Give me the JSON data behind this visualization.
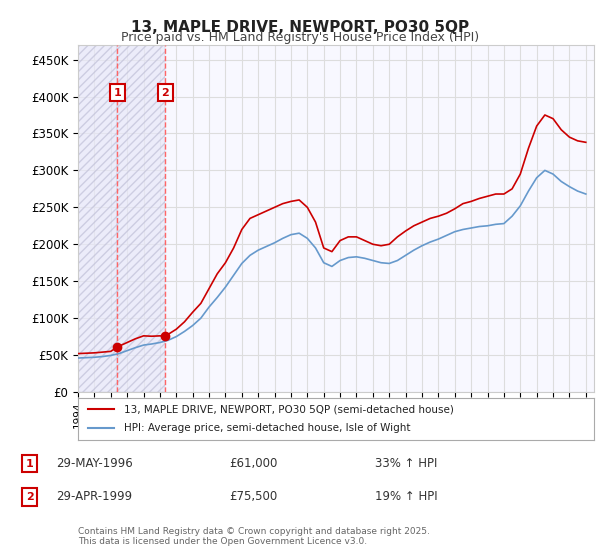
{
  "title": "13, MAPLE DRIVE, NEWPORT, PO30 5QP",
  "subtitle": "Price paid vs. HM Land Registry's House Price Index (HPI)",
  "xlabel": "",
  "ylabel": "",
  "ylim": [
    0,
    470000
  ],
  "yticks": [
    0,
    50000,
    100000,
    150000,
    200000,
    250000,
    300000,
    350000,
    400000,
    450000
  ],
  "ytick_labels": [
    "£0",
    "£50K",
    "£100K",
    "£150K",
    "£200K",
    "£250K",
    "£300K",
    "£350K",
    "£400K",
    "£450K"
  ],
  "xlim_start": 1994.0,
  "xlim_end": 2025.5,
  "sale1_date": 1996.41,
  "sale1_price": 61000,
  "sale1_label": "1",
  "sale1_date_str": "29-MAY-1996",
  "sale1_price_str": "£61,000",
  "sale1_hpi_str": "33% ↑ HPI",
  "sale2_date": 1999.33,
  "sale2_price": 75500,
  "sale2_label": "2",
  "sale2_date_str": "29-APR-1999",
  "sale2_price_str": "£75,500",
  "sale2_hpi_str": "19% ↑ HPI",
  "red_line_color": "#cc0000",
  "blue_line_color": "#6699cc",
  "sale_marker_color": "#cc0000",
  "vline_color": "#ff6666",
  "hatch_color": "#ddddff",
  "legend_label_red": "13, MAPLE DRIVE, NEWPORT, PO30 5QP (semi-detached house)",
  "legend_label_blue": "HPI: Average price, semi-detached house, Isle of Wight",
  "footer": "Contains HM Land Registry data © Crown copyright and database right 2025.\nThis data is licensed under the Open Government Licence v3.0.",
  "background_color": "#ffffff",
  "plot_bg_color": "#f8f8ff",
  "grid_color": "#dddddd",
  "red_data_x": [
    1994.0,
    1994.5,
    1995.0,
    1995.5,
    1996.0,
    1996.41,
    1996.5,
    1997.0,
    1997.5,
    1998.0,
    1998.5,
    1999.0,
    1999.33,
    1999.5,
    2000.0,
    2000.5,
    2001.0,
    2001.5,
    2002.0,
    2002.5,
    2003.0,
    2003.5,
    2004.0,
    2004.5,
    2005.0,
    2005.5,
    2006.0,
    2006.5,
    2007.0,
    2007.5,
    2008.0,
    2008.5,
    2009.0,
    2009.5,
    2010.0,
    2010.5,
    2011.0,
    2011.5,
    2012.0,
    2012.5,
    2013.0,
    2013.5,
    2014.0,
    2014.5,
    2015.0,
    2015.5,
    2016.0,
    2016.5,
    2017.0,
    2017.5,
    2018.0,
    2018.5,
    2019.0,
    2019.5,
    2020.0,
    2020.5,
    2021.0,
    2021.5,
    2022.0,
    2022.5,
    2023.0,
    2023.5,
    2024.0,
    2024.5,
    2025.0
  ],
  "red_data_y": [
    52000,
    52500,
    53000,
    54000,
    55000,
    61000,
    62000,
    67000,
    72000,
    76000,
    75500,
    76000,
    75500,
    78000,
    85000,
    95000,
    108000,
    120000,
    140000,
    160000,
    175000,
    195000,
    220000,
    235000,
    240000,
    245000,
    250000,
    255000,
    258000,
    260000,
    250000,
    230000,
    195000,
    190000,
    205000,
    210000,
    210000,
    205000,
    200000,
    198000,
    200000,
    210000,
    218000,
    225000,
    230000,
    235000,
    238000,
    242000,
    248000,
    255000,
    258000,
    262000,
    265000,
    268000,
    268000,
    275000,
    295000,
    330000,
    360000,
    375000,
    370000,
    355000,
    345000,
    340000,
    338000
  ],
  "blue_data_x": [
    1994.0,
    1994.5,
    1995.0,
    1995.5,
    1996.0,
    1996.5,
    1997.0,
    1997.5,
    1998.0,
    1998.5,
    1999.0,
    1999.5,
    2000.0,
    2000.5,
    2001.0,
    2001.5,
    2002.0,
    2002.5,
    2003.0,
    2003.5,
    2004.0,
    2004.5,
    2005.0,
    2005.5,
    2006.0,
    2006.5,
    2007.0,
    2007.5,
    2008.0,
    2008.5,
    2009.0,
    2009.5,
    2010.0,
    2010.5,
    2011.0,
    2011.5,
    2012.0,
    2012.5,
    2013.0,
    2013.5,
    2014.0,
    2014.5,
    2015.0,
    2015.5,
    2016.0,
    2016.5,
    2017.0,
    2017.5,
    2018.0,
    2018.5,
    2019.0,
    2019.5,
    2020.0,
    2020.5,
    2021.0,
    2021.5,
    2022.0,
    2022.5,
    2023.0,
    2023.5,
    2024.0,
    2024.5,
    2025.0
  ],
  "blue_data_y": [
    46000,
    46500,
    47000,
    48000,
    49500,
    52000,
    56000,
    60000,
    63500,
    65000,
    67000,
    70000,
    75000,
    82000,
    90000,
    100000,
    115000,
    128000,
    142000,
    158000,
    174000,
    185000,
    192000,
    197000,
    202000,
    208000,
    213000,
    215000,
    208000,
    195000,
    175000,
    170000,
    178000,
    182000,
    183000,
    181000,
    178000,
    175000,
    174000,
    178000,
    185000,
    192000,
    198000,
    203000,
    207000,
    212000,
    217000,
    220000,
    222000,
    224000,
    225000,
    227000,
    228000,
    238000,
    252000,
    272000,
    290000,
    300000,
    295000,
    285000,
    278000,
    272000,
    268000
  ]
}
